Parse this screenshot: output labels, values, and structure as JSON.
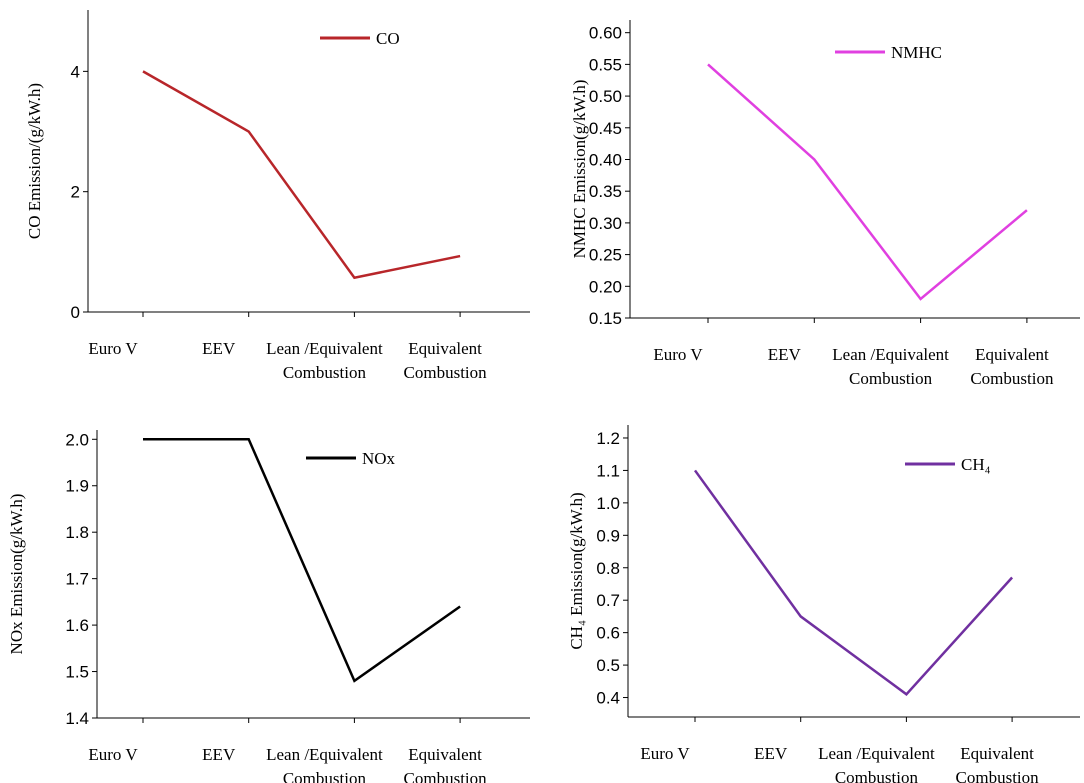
{
  "chart_data": [
    {
      "type": "line",
      "ylabel": "CO Emission/(g/kW.h)",
      "categories": [
        [
          "Euro V"
        ],
        [
          "EEV"
        ],
        [
          "Lean /Equivalent",
          "Combustion"
        ],
        [
          "Equivalent",
          "Combustion"
        ]
      ],
      "series": [
        {
          "name": "CO",
          "color": "#b8262a",
          "values": [
            4,
            3,
            0.57,
            0.93
          ]
        }
      ],
      "ylim": [
        0,
        5.02
      ],
      "yticks": [
        0,
        2,
        4
      ]
    },
    {
      "type": "line",
      "ylabel": "NMHC Emission(g/kW.h)",
      "categories": [
        [
          "Euro V"
        ],
        [
          "EEV"
        ],
        [
          "Lean /Equivalent",
          "Combustion"
        ],
        [
          "Equivalent",
          "Combustion"
        ]
      ],
      "series": [
        {
          "name": "NMHC",
          "color": "#e040e0",
          "values": [
            0.55,
            0.4,
            0.18,
            0.32
          ]
        }
      ],
      "ylim": [
        0.15,
        0.62
      ],
      "yticks": [
        0.15,
        {
          "value": 0.2,
          "label": "0.20"
        },
        0.25,
        {
          "value": 0.3,
          "label": "0.30"
        },
        0.35,
        {
          "value": 0.4,
          "label": "0.40"
        },
        0.45,
        {
          "value": 0.5,
          "label": "0.50"
        },
        0.55,
        {
          "value": 0.6,
          "label": "0.60"
        }
      ]
    },
    {
      "type": "line",
      "ylabel": "NOx Emission(g/kW.h)",
      "categories": [
        [
          "Euro V"
        ],
        [
          "EEV"
        ],
        [
          "Lean /Equivalent",
          "Combustion"
        ],
        [
          "Equivalent",
          "Combustion"
        ]
      ],
      "series": [
        {
          "name": "NOx",
          "color": "#000000",
          "values": [
            2.0,
            2.0,
            1.48,
            1.64
          ]
        }
      ],
      "ylim": [
        1.4,
        2.02
      ],
      "yticks": [
        1.4,
        1.5,
        1.6,
        1.7,
        1.8,
        1.9,
        {
          "value": 2.0,
          "label": "2.0"
        }
      ]
    },
    {
      "type": "line",
      "ylabel": "CH₄ Emission(g/kW.h)",
      "categories": [
        [
          "Euro V"
        ],
        [
          "EEV"
        ],
        [
          "Lean /Equivalent",
          "Combustion"
        ],
        [
          "Equivalent",
          "Combustion"
        ]
      ],
      "series": [
        {
          "name": "CH₄",
          "color": "#7030a0",
          "values": [
            1.1,
            0.65,
            0.41,
            0.77
          ]
        }
      ],
      "ylim": [
        0.34,
        1.24
      ],
      "yticks": [
        0.4,
        0.5,
        0.6,
        0.7,
        0.8,
        0.9,
        {
          "value": 1.0,
          "label": "1.0"
        },
        1.1,
        1.2
      ]
    }
  ]
}
